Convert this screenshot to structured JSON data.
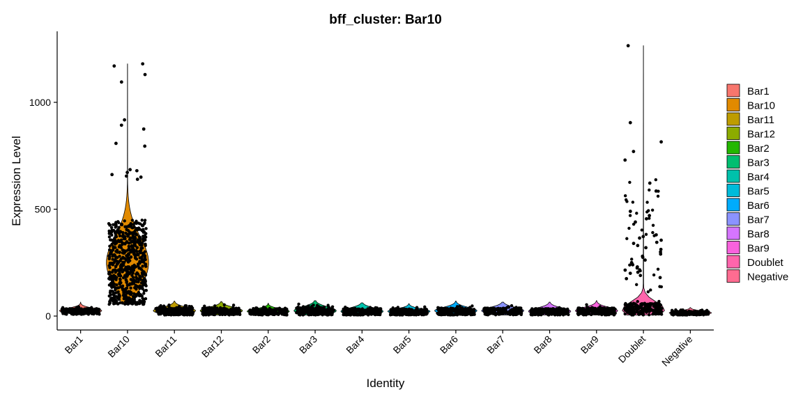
{
  "chart_data": {
    "type": "violin",
    "title": "bff_cluster: Bar10",
    "xlabel": "Identity",
    "ylabel": "Expression Level",
    "ylim": [
      -60,
      1290
    ],
    "yticks": [
      0,
      500,
      1000
    ],
    "grid": false,
    "legend_position": "right",
    "categories": [
      "Bar1",
      "Bar10",
      "Bar11",
      "Bar12",
      "Bar2",
      "Bar3",
      "Bar4",
      "Bar5",
      "Bar6",
      "Bar7",
      "Bar8",
      "Bar9",
      "Doublet",
      "Negative"
    ],
    "colors": [
      "#F8766D",
      "#E18A00",
      "#BE9C00",
      "#8CAB00",
      "#24B700",
      "#00BE70",
      "#00C1AB",
      "#00BBDA",
      "#00ACFC",
      "#8B93FF",
      "#D575FE",
      "#F962DD",
      "#FF65AC",
      "#FF6C91"
    ],
    "series": [
      {
        "name": "Bar1",
        "min": 8,
        "median": 25,
        "q3": 35,
        "max": 65
      },
      {
        "name": "Bar10",
        "min": 55,
        "median": 250,
        "q3": 350,
        "max": 1180
      },
      {
        "name": "Bar11",
        "min": 5,
        "median": 25,
        "q3": 38,
        "max": 70
      },
      {
        "name": "Bar12",
        "min": 5,
        "median": 25,
        "q3": 38,
        "max": 68
      },
      {
        "name": "Bar2",
        "min": 5,
        "median": 22,
        "q3": 32,
        "max": 60
      },
      {
        "name": "Bar3",
        "min": 5,
        "median": 25,
        "q3": 40,
        "max": 72
      },
      {
        "name": "Bar4",
        "min": 5,
        "median": 22,
        "q3": 35,
        "max": 62
      },
      {
        "name": "Bar5",
        "min": 5,
        "median": 22,
        "q3": 32,
        "max": 58
      },
      {
        "name": "Bar6",
        "min": 5,
        "median": 25,
        "q3": 38,
        "max": 70
      },
      {
        "name": "Bar7",
        "min": 5,
        "median": 25,
        "q3": 38,
        "max": 65
      },
      {
        "name": "Bar8",
        "min": 5,
        "median": 22,
        "q3": 35,
        "max": 65
      },
      {
        "name": "Bar9",
        "min": 5,
        "median": 25,
        "q3": 38,
        "max": 72
      },
      {
        "name": "Doublet",
        "min": 5,
        "median": 30,
        "q3": 60,
        "max": 1265
      },
      {
        "name": "Negative",
        "min": 5,
        "median": 15,
        "q3": 22,
        "max": 40
      }
    ],
    "outliers": [
      {
        "category": "Bar10",
        "values": [
          1180,
          1170,
          1130,
          1095,
          918,
          893,
          875,
          808,
          795,
          685,
          680,
          672,
          662,
          655,
          650,
          640
        ]
      },
      {
        "category": "Doublet",
        "values": [
          1265,
          905,
          815,
          770,
          730,
          622,
          585,
          490,
          470,
          455,
          440,
          380,
          372,
          365,
          355,
          345,
          340,
          330,
          320,
          312,
          300,
          290,
          280,
          275,
          262,
          250,
          245,
          240,
          230,
          225,
          215,
          205,
          200,
          190,
          180,
          175
        ]
      }
    ]
  },
  "legend": {
    "items": [
      "Bar1",
      "Bar10",
      "Bar11",
      "Bar12",
      "Bar2",
      "Bar3",
      "Bar4",
      "Bar5",
      "Bar6",
      "Bar7",
      "Bar8",
      "Bar9",
      "Doublet",
      "Negative"
    ]
  }
}
